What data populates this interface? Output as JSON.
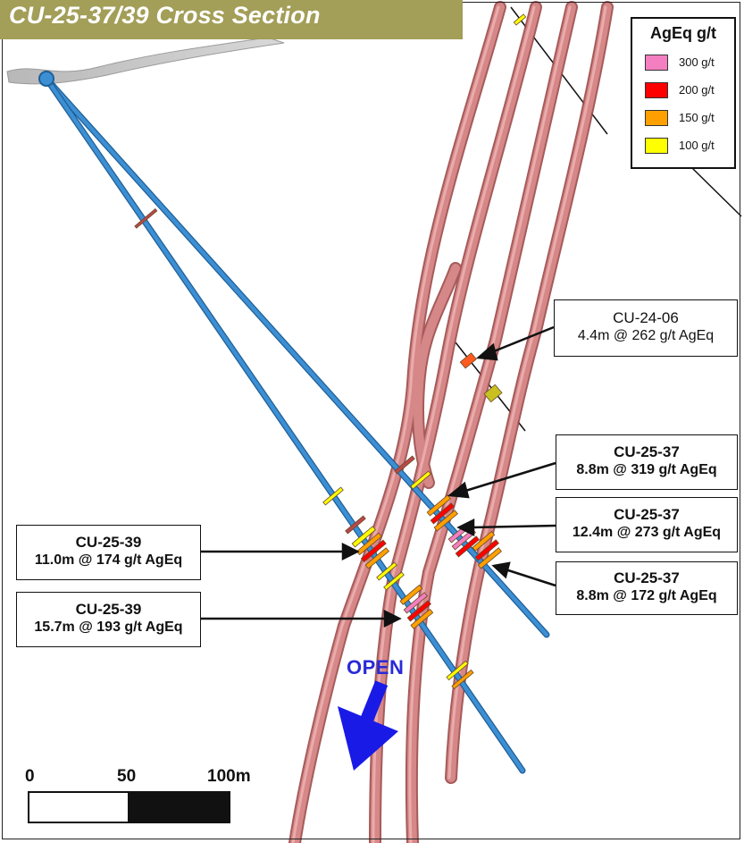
{
  "title": "CU-25-37/39 Cross Section",
  "legend": {
    "title": "AgEq g/t",
    "items": [
      {
        "label": "300 g/t",
        "color": "#f37fc0"
      },
      {
        "label": "200 g/t",
        "color": "#ff0000"
      },
      {
        "label": "150 g/t",
        "color": "#ffa000"
      },
      {
        "label": "100 g/t",
        "color": "#ffff00"
      }
    ]
  },
  "callouts": [
    {
      "hole": "CU-24-06",
      "interval": "4.4m @ 262 g/t AgEq",
      "bold": false
    },
    {
      "hole": "CU-25-37",
      "interval": "8.8m @ 319 g/t AgEq",
      "bold": true
    },
    {
      "hole": "CU-25-37",
      "interval": "12.4m @ 273 g/t AgEq",
      "bold": true
    },
    {
      "hole": "CU-25-37",
      "interval": "8.8m @ 172 g/t AgEq",
      "bold": true
    },
    {
      "hole": "CU-25-39",
      "interval": "11.0m @ 174 g/t AgEq",
      "bold": true
    },
    {
      "hole": "CU-25-39",
      "interval": "15.7m @ 193 g/t AgEq",
      "bold": true
    }
  ],
  "open_label": "OPEN",
  "scale_bar": {
    "labels": [
      "0",
      "50",
      "100m"
    ]
  },
  "colors": {
    "vein": "#d98a8a",
    "vein_edge": "#9c4a4a",
    "drillhole": "#3d8fd4",
    "arrow": "#1a1ae6",
    "banner": "#a39e58"
  }
}
